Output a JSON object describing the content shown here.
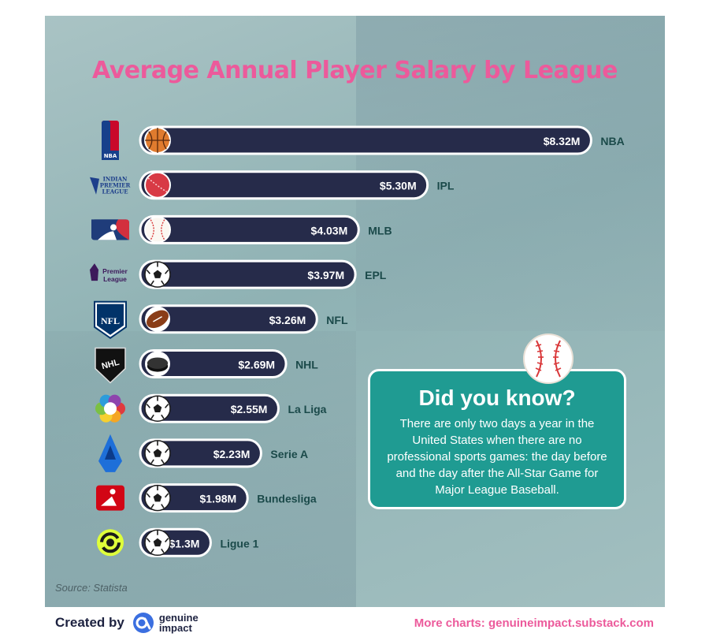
{
  "chart_data": {
    "type": "bar",
    "orientation": "horizontal",
    "title": "Average Annual Player Salary by League",
    "categories": [
      "NBA",
      "IPL",
      "MLB",
      "EPL",
      "NFL",
      "NHL",
      "La Liga",
      "Serie A",
      "Bundesliga",
      "Ligue 1"
    ],
    "values": [
      8.32,
      5.3,
      4.03,
      3.97,
      3.26,
      2.69,
      2.55,
      2.23,
      1.98,
      1.3
    ],
    "value_labels": [
      "$8.32M",
      "$5.30M",
      "$4.03M",
      "$3.97M",
      "$3.26M",
      "$2.69M",
      "$2.55M",
      "$2.23M",
      "$1.98M",
      "$1.3M"
    ],
    "unit": "million USD",
    "ball_icons": [
      "basketball-icon",
      "cricket-ball-icon",
      "baseball-icon",
      "soccer-ball-icon",
      "football-icon",
      "hockey-puck-icon",
      "soccer-ball-icon",
      "soccer-ball-icon",
      "soccer-ball-icon",
      "soccer-ball-icon"
    ],
    "logo_icons": [
      "nba-logo-icon",
      "ipl-logo-icon",
      "mlb-logo-icon",
      "premier-league-logo-icon",
      "nfl-logo-icon",
      "nhl-logo-icon",
      "la-liga-logo-icon",
      "serie-a-logo-icon",
      "bundesliga-logo-icon",
      "ligue-1-logo-icon"
    ],
    "logo_texts": [
      "NBA",
      "INDIAN PREMIER LEAGUE",
      "",
      "Premier League",
      "NFL",
      "NHL",
      "",
      "",
      "",
      ""
    ],
    "grid": false,
    "legend": "none"
  },
  "fact": {
    "title": "Did you know?",
    "body": "There are only two days a year in the United States when there are no professional sports games: the day before and the day after the All-Star Game for Major League Baseball."
  },
  "source": "Source: Statista",
  "footer": {
    "created_by": "Created by",
    "brand": "genuine impact",
    "more_charts": "More charts: genuineimpact.substack.com"
  },
  "colors": {
    "bar": "#262b4a",
    "title": "#ec5a9b",
    "value_text": "#ffffff",
    "category_text": "#1b4a4a",
    "fact_box": "#1f9b92",
    "footer_link": "#ec5a9b"
  }
}
